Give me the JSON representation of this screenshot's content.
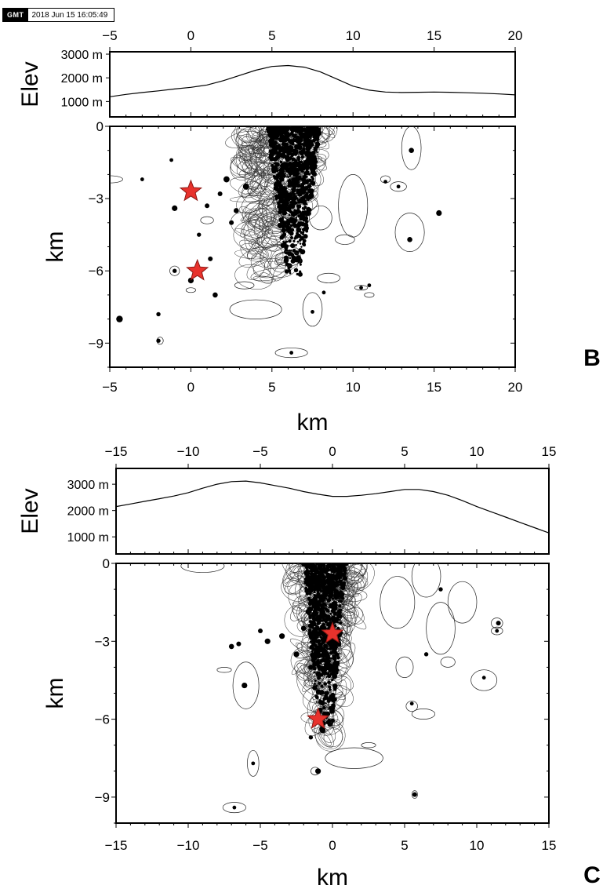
{
  "timestamp": "2018 Jun 15 16:05:49",
  "logo": "GMT",
  "chart_data": [
    {
      "type": "scatter",
      "panel_label": "B",
      "elev_ylabel": "Elev",
      "elev_ticks": [
        "3000 m",
        "2000 m",
        "1000 m"
      ],
      "elev_tick_values": [
        3000,
        2000,
        1000
      ],
      "elev_ylim": [
        350,
        3100
      ],
      "elev_profile": {
        "x": [
          -5,
          -4,
          -3,
          -2,
          -1,
          0,
          1,
          2,
          3,
          4,
          5,
          6,
          7,
          8,
          9,
          10,
          11,
          12,
          13,
          14,
          15,
          16,
          17,
          18,
          19,
          20
        ],
        "y": [
          1200,
          1300,
          1380,
          1450,
          1530,
          1600,
          1700,
          1880,
          2100,
          2320,
          2480,
          2520,
          2450,
          2250,
          1950,
          1650,
          1480,
          1400,
          1380,
          1390,
          1400,
          1390,
          1370,
          1350,
          1320,
          1280
        ]
      },
      "xlabel": "km",
      "ylabel": "km",
      "xlim": [
        -5,
        20
      ],
      "ylim": [
        -10,
        0
      ],
      "xticks": [
        -5,
        0,
        5,
        10,
        15,
        20
      ],
      "yticks": [
        0,
        -3,
        -6,
        -9
      ],
      "stars": [
        {
          "x": 0.0,
          "y": -2.7
        },
        {
          "x": 0.4,
          "y": -6.0
        }
      ],
      "cluster": {
        "x": [
          3.0,
          8.5
        ],
        "y": [
          -6.5,
          0
        ]
      },
      "events": [
        {
          "x": -4.4,
          "y": -8.0,
          "s": 1.0
        },
        {
          "x": -2.0,
          "y": -7.8,
          "s": 0.5
        },
        {
          "x": -2.0,
          "y": -8.9,
          "s": 0.5
        },
        {
          "x": -1.0,
          "y": -3.4,
          "s": 0.8
        },
        {
          "x": -1.0,
          "y": -6.0,
          "s": 0.5
        },
        {
          "x": -3.0,
          "y": -2.2,
          "s": 0.4
        },
        {
          "x": -1.2,
          "y": -1.4,
          "s": 0.4
        },
        {
          "x": 0.0,
          "y": -6.4,
          "s": 0.8
        },
        {
          "x": 1.5,
          "y": -7.0,
          "s": 0.7
        },
        {
          "x": 1.0,
          "y": -3.3,
          "s": 0.6
        },
        {
          "x": 0.5,
          "y": -4.5,
          "s": 0.5
        },
        {
          "x": 1.2,
          "y": -5.5,
          "s": 0.6
        },
        {
          "x": 7.5,
          "y": -7.7,
          "s": 0.4
        },
        {
          "x": 6.2,
          "y": -9.4,
          "s": 0.4
        },
        {
          "x": 13.6,
          "y": -1.0,
          "s": 0.7
        },
        {
          "x": 13.5,
          "y": -4.7,
          "s": 0.7
        },
        {
          "x": 15.3,
          "y": -3.6,
          "s": 0.8
        },
        {
          "x": 12.8,
          "y": -2.5,
          "s": 0.4
        },
        {
          "x": 12.0,
          "y": -2.3,
          "s": 0.4
        },
        {
          "x": 10.5,
          "y": -6.7,
          "s": 0.4
        },
        {
          "x": 11.0,
          "y": -6.6,
          "s": 0.4
        },
        {
          "x": 8.2,
          "y": -6.9,
          "s": 0.4
        },
        {
          "x": 2.2,
          "y": -2.2,
          "s": 0.9
        },
        {
          "x": 2.8,
          "y": -3.5,
          "s": 0.7
        },
        {
          "x": 1.8,
          "y": -2.8,
          "s": 0.6
        },
        {
          "x": 2.5,
          "y": -4.0,
          "s": 0.6
        },
        {
          "x": 3.4,
          "y": -2.5,
          "s": 0.9
        }
      ],
      "ellipses": [
        {
          "x": -5.0,
          "y": -2.2,
          "rx": 0.8,
          "ry": 0.15
        },
        {
          "x": -1.0,
          "y": -6.0,
          "rx": 0.3,
          "ry": 0.2
        },
        {
          "x": 7.5,
          "y": -7.6,
          "rx": 0.6,
          "ry": 0.7
        },
        {
          "x": 6.2,
          "y": -9.4,
          "rx": 1.0,
          "ry": 0.2
        },
        {
          "x": 13.6,
          "y": -0.9,
          "rx": 0.6,
          "ry": 0.9
        },
        {
          "x": 13.5,
          "y": -4.4,
          "rx": 0.9,
          "ry": 0.8
        },
        {
          "x": 10.0,
          "y": -3.3,
          "rx": 0.9,
          "ry": 1.3
        },
        {
          "x": 12.8,
          "y": -2.5,
          "rx": 0.5,
          "ry": 0.2
        },
        {
          "x": 12.0,
          "y": -2.2,
          "rx": 0.3,
          "ry": 0.15
        },
        {
          "x": 10.5,
          "y": -6.7,
          "rx": 0.4,
          "ry": 0.1
        },
        {
          "x": 4.0,
          "y": -7.6,
          "rx": 1.6,
          "ry": 0.4
        },
        {
          "x": 3.3,
          "y": -6.6,
          "rx": 0.6,
          "ry": 0.15
        },
        {
          "x": 6.0,
          "y": -5.5,
          "rx": 0.8,
          "ry": 0.3
        },
        {
          "x": 9.5,
          "y": -4.7,
          "rx": 0.6,
          "ry": 0.2
        },
        {
          "x": 8.0,
          "y": -3.8,
          "rx": 0.7,
          "ry": 0.5
        },
        {
          "x": 11.0,
          "y": -7.0,
          "rx": 0.3,
          "ry": 0.1
        },
        {
          "x": 1.0,
          "y": -3.9,
          "rx": 0.4,
          "ry": 0.15
        },
        {
          "x": -1.9,
          "y": -8.9,
          "rx": 0.2,
          "ry": 0.15
        },
        {
          "x": 0.0,
          "y": -6.8,
          "rx": 0.3,
          "ry": 0.1
        },
        {
          "x": 8.5,
          "y": -6.3,
          "rx": 0.7,
          "ry": 0.2
        }
      ]
    },
    {
      "type": "scatter",
      "panel_label": "C",
      "elev_ylabel": "Elev",
      "elev_ticks": [
        "3000 m",
        "2000 m",
        "1000 m"
      ],
      "elev_tick_values": [
        3000,
        2000,
        1000
      ],
      "elev_ylim": [
        350,
        3600
      ],
      "elev_profile": {
        "x": [
          -15,
          -14,
          -13,
          -12,
          -11,
          -10,
          -9,
          -8,
          -7,
          -6,
          -5,
          -4,
          -3,
          -2,
          -1,
          0,
          1,
          2,
          3,
          4,
          5,
          6,
          7,
          8,
          9,
          10,
          11,
          12,
          13,
          14,
          15
        ],
        "y": [
          2150,
          2250,
          2350,
          2450,
          2550,
          2680,
          2850,
          3000,
          3100,
          3120,
          3050,
          2950,
          2850,
          2720,
          2620,
          2540,
          2540,
          2580,
          2640,
          2720,
          2800,
          2800,
          2720,
          2580,
          2380,
          2150,
          1950,
          1750,
          1550,
          1350,
          1150
        ]
      },
      "xlabel": "km",
      "ylabel": "km",
      "xlim": [
        -15,
        15
      ],
      "ylim": [
        -10,
        0
      ],
      "xticks": [
        -15,
        -10,
        -5,
        0,
        5,
        10,
        15
      ],
      "yticks": [
        0,
        -3,
        -6,
        -9
      ],
      "stars": [
        {
          "x": 0.0,
          "y": -2.7
        },
        {
          "x": -1.0,
          "y": -6.0
        }
      ],
      "cluster": {
        "x": [
          -3.0,
          2.0
        ],
        "y": [
          -7.0,
          0
        ]
      },
      "events": [
        {
          "x": -6.1,
          "y": -4.7,
          "s": 0.8
        },
        {
          "x": -5.5,
          "y": -7.7,
          "s": 0.4
        },
        {
          "x": -6.8,
          "y": -9.4,
          "s": 0.4
        },
        {
          "x": -1.0,
          "y": -8.0,
          "s": 0.8
        },
        {
          "x": 5.7,
          "y": -8.9,
          "s": 0.6
        },
        {
          "x": -7.0,
          "y": -3.2,
          "s": 0.7
        },
        {
          "x": -6.5,
          "y": -3.1,
          "s": 0.6
        },
        {
          "x": -4.5,
          "y": -3.0,
          "s": 0.8
        },
        {
          "x": -3.5,
          "y": -2.8,
          "s": 0.8
        },
        {
          "x": -5.0,
          "y": -2.6,
          "s": 0.6
        },
        {
          "x": -2.5,
          "y": -3.5,
          "s": 0.8
        },
        {
          "x": -2.0,
          "y": -2.5,
          "s": 0.7
        },
        {
          "x": -1.5,
          "y": -4.0,
          "s": 0.7
        },
        {
          "x": 11.5,
          "y": -2.3,
          "s": 0.6
        },
        {
          "x": 11.4,
          "y": -2.6,
          "s": 0.4
        },
        {
          "x": 10.5,
          "y": -4.4,
          "s": 0.4
        },
        {
          "x": 5.5,
          "y": -5.4,
          "s": 0.4
        },
        {
          "x": 6.5,
          "y": -3.5,
          "s": 0.5
        },
        {
          "x": 7.5,
          "y": -1.0,
          "s": 0.5
        },
        {
          "x": -0.7,
          "y": -6.4,
          "s": 0.9
        },
        {
          "x": -1.5,
          "y": -6.7,
          "s": 0.5
        }
      ],
      "ellipses": [
        {
          "x": -6.0,
          "y": -4.7,
          "rx": 0.9,
          "ry": 0.9
        },
        {
          "x": -5.5,
          "y": -7.7,
          "rx": 0.4,
          "ry": 0.5
        },
        {
          "x": -6.8,
          "y": -9.4,
          "rx": 0.8,
          "ry": 0.2
        },
        {
          "x": -9.0,
          "y": -0.1,
          "rx": 1.5,
          "ry": 0.25
        },
        {
          "x": -7.5,
          "y": -4.1,
          "rx": 0.5,
          "ry": 0.1
        },
        {
          "x": 11.4,
          "y": -2.3,
          "rx": 0.4,
          "ry": 0.2
        },
        {
          "x": 11.4,
          "y": -2.6,
          "rx": 0.4,
          "ry": 0.15
        },
        {
          "x": 10.5,
          "y": -4.5,
          "rx": 0.9,
          "ry": 0.4
        },
        {
          "x": 5.7,
          "y": -8.9,
          "rx": 0.2,
          "ry": 0.15
        },
        {
          "x": 5.5,
          "y": -5.5,
          "rx": 0.4,
          "ry": 0.2
        },
        {
          "x": 6.3,
          "y": -5.8,
          "rx": 0.8,
          "ry": 0.2
        },
        {
          "x": 1.5,
          "y": -7.5,
          "rx": 2.0,
          "ry": 0.4
        },
        {
          "x": -1.2,
          "y": -8.0,
          "rx": 0.3,
          "ry": 0.15
        },
        {
          "x": 2.5,
          "y": -7.0,
          "rx": 0.5,
          "ry": 0.1
        },
        {
          "x": 7.5,
          "y": -2.5,
          "rx": 1.0,
          "ry": 1.0
        },
        {
          "x": 9.0,
          "y": -1.5,
          "rx": 1.0,
          "ry": 0.8
        },
        {
          "x": 5.0,
          "y": -4.0,
          "rx": 0.6,
          "ry": 0.4
        },
        {
          "x": 8.0,
          "y": -3.8,
          "rx": 0.5,
          "ry": 0.2
        },
        {
          "x": 4.5,
          "y": -1.5,
          "rx": 1.2,
          "ry": 1.0
        },
        {
          "x": 6.5,
          "y": -0.5,
          "rx": 1.0,
          "ry": 0.8
        }
      ]
    }
  ]
}
